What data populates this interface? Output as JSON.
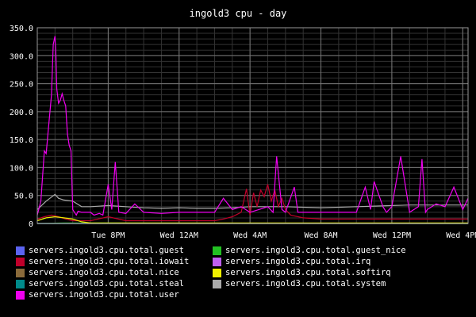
{
  "chart_data": {
    "type": "line",
    "title": "ingold3 cpu - day",
    "xlabel": "",
    "ylabel": "",
    "ylim": [
      0,
      350
    ],
    "x_range_hours": [
      0,
      24.3
    ],
    "grid": true,
    "legend_placement": "bottom",
    "x_ticks": [
      {
        "label": "Tue  8PM",
        "hour": 4.0
      },
      {
        "label": "Wed 12AM",
        "hour": 8.0
      },
      {
        "label": "Wed  4AM",
        "hour": 12.0
      },
      {
        "label": "Wed  8AM",
        "hour": 16.0
      },
      {
        "label": "Wed 12PM",
        "hour": 20.0
      },
      {
        "label": "Wed  4PM",
        "hour": 24.0
      }
    ],
    "y_ticks": [
      "0",
      "50.0",
      "100.0",
      "150.0",
      "200.0",
      "250.0",
      "300.0",
      "350.0"
    ],
    "y_tick_values": [
      0,
      50,
      100,
      150,
      200,
      250,
      300,
      350
    ],
    "series": [
      {
        "name": "servers.ingold3.cpu.total.guest",
        "color": "#5b63f0",
        "x": [
          0,
          24.3
        ],
        "values": [
          0,
          0
        ]
      },
      {
        "name": "servers.ingold3.cpu.total.guest_nice",
        "color": "#22c022",
        "x": [
          0,
          1.5,
          24.3
        ],
        "values": [
          0,
          1,
          0
        ]
      },
      {
        "name": "servers.ingold3.cpu.total.iowait",
        "color": "#c0002a",
        "x": [
          0,
          0.4,
          0.8,
          1.2,
          1.6,
          2.0,
          3.0,
          4.0,
          5.0,
          6.0,
          7.0,
          8.0,
          9.0,
          10.0,
          10.5,
          11.0,
          11.5,
          11.8,
          12.0,
          12.2,
          12.4,
          12.6,
          12.8,
          13.0,
          13.2,
          13.4,
          13.6,
          13.8,
          14.0,
          14.3,
          15.0,
          16.0,
          17.0,
          18.0,
          19.0,
          20.0,
          21.0,
          22.0,
          23.0,
          24.3
        ],
        "values": [
          8,
          12,
          15,
          12,
          8,
          5,
          5,
          12,
          5,
          5,
          5,
          5,
          5,
          5,
          8,
          12,
          20,
          62,
          15,
          55,
          30,
          60,
          48,
          70,
          40,
          60,
          30,
          45,
          25,
          15,
          10,
          8,
          8,
          8,
          8,
          8,
          8,
          8,
          8,
          8
        ]
      },
      {
        "name": "servers.ingold3.cpu.total.irq",
        "color": "#c060f0",
        "x": [
          0,
          24.3
        ],
        "values": [
          0,
          0
        ]
      },
      {
        "name": "servers.ingold3.cpu.total.nice",
        "color": "#8a6a3a",
        "x": [
          0,
          24.3
        ],
        "values": [
          0,
          0
        ]
      },
      {
        "name": "servers.ingold3.cpu.total.softirq",
        "color": "#f0f000",
        "x": [
          0,
          0.5,
          1.0,
          1.5,
          2.0,
          2.5,
          3.0,
          24.3
        ],
        "values": [
          5,
          10,
          12,
          10,
          8,
          3,
          1,
          1
        ]
      },
      {
        "name": "servers.ingold3.cpu.total.steal",
        "color": "#008a8a",
        "x": [
          0,
          24.3
        ],
        "values": [
          0,
          0
        ]
      },
      {
        "name": "servers.ingold3.cpu.total.system",
        "color": "#aaaaaa",
        "x": [
          0,
          0.5,
          1.0,
          1.2,
          1.5,
          2.0,
          2.5,
          3.0,
          4.0,
          5.0,
          6.0,
          7.0,
          8.0,
          9.0,
          10.0,
          11.0,
          12.0,
          13.0,
          14.0,
          15.0,
          16.0,
          17.0,
          18.0,
          19.0,
          20.0,
          21.0,
          22.0,
          23.0,
          24.3
        ],
        "values": [
          25,
          40,
          52,
          45,
          42,
          40,
          30,
          30,
          32,
          30,
          28,
          27,
          28,
          27,
          27,
          28,
          30,
          30,
          30,
          29,
          28,
          29,
          30,
          31,
          32,
          33,
          33,
          33,
          33
        ]
      },
      {
        "name": "servers.ingold3.cpu.total.user",
        "color": "#f000f0",
        "x": [
          0,
          0.2,
          0.4,
          0.5,
          0.6,
          0.8,
          0.9,
          1.0,
          1.05,
          1.1,
          1.2,
          1.3,
          1.4,
          1.5,
          1.6,
          1.7,
          1.8,
          1.9,
          2.0,
          2.1,
          2.2,
          2.3,
          2.5,
          3.0,
          3.2,
          3.5,
          3.7,
          4.0,
          4.2,
          4.4,
          4.6,
          5.0,
          5.5,
          6.0,
          7.0,
          8.0,
          9.0,
          10.0,
          10.5,
          11.0,
          11.5,
          12.0,
          12.5,
          13.0,
          13.3,
          13.5,
          13.8,
          14.0,
          14.5,
          14.7,
          15.0,
          15.5,
          16.0,
          17.0,
          18.0,
          18.5,
          18.8,
          19.0,
          19.5,
          19.7,
          20.0,
          20.5,
          21.0,
          21.5,
          21.7,
          21.9,
          22.0,
          22.5,
          23.0,
          23.5,
          24.0,
          24.3
        ],
        "values": [
          15,
          40,
          130,
          125,
          160,
          230,
          320,
          335,
          300,
          240,
          215,
          220,
          232,
          220,
          210,
          160,
          140,
          130,
          25,
          20,
          15,
          22,
          20,
          20,
          15,
          18,
          15,
          70,
          25,
          110,
          20,
          18,
          35,
          20,
          18,
          20,
          20,
          20,
          45,
          25,
          30,
          20,
          25,
          30,
          20,
          120,
          25,
          20,
          65,
          20,
          20,
          20,
          20,
          20,
          20,
          65,
          25,
          75,
          30,
          20,
          30,
          120,
          20,
          30,
          115,
          20,
          25,
          35,
          30,
          65,
          25,
          45
        ]
      }
    ]
  }
}
